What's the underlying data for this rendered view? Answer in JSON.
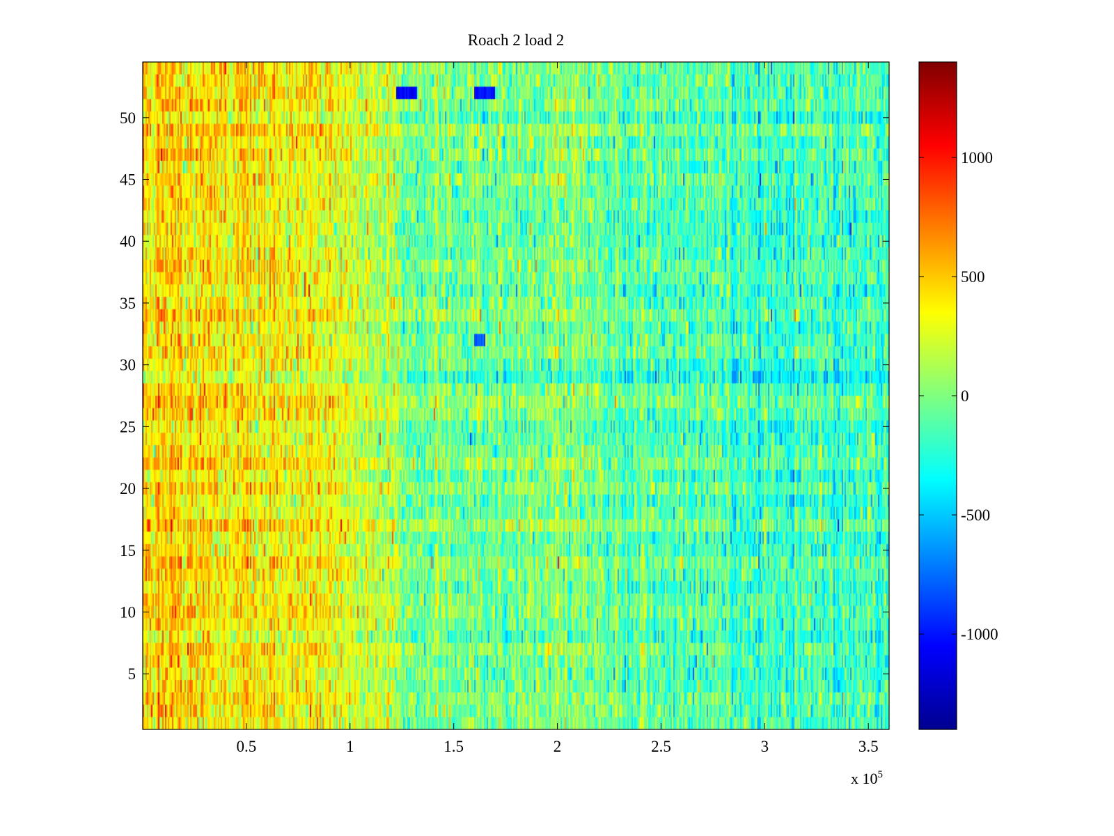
{
  "chart_data": {
    "type": "heatmap",
    "title": "Roach 2 load 2",
    "xlabel": "",
    "ylabel": "",
    "x_range": [
      0,
      360000
    ],
    "y_range": [
      0.5,
      54.5
    ],
    "x_ticks": [
      0.5,
      1,
      1.5,
      2,
      2.5,
      3,
      3.5
    ],
    "x_tick_labels": [
      "0.5",
      "1",
      "1.5",
      "2",
      "2.5",
      "3",
      "3.5"
    ],
    "x_multiplier": {
      "base": "x 10",
      "exponent": "5"
    },
    "y_ticks": [
      5,
      10,
      15,
      20,
      25,
      30,
      35,
      40,
      45,
      50
    ],
    "y_tick_labels": [
      "5",
      "10",
      "15",
      "20",
      "25",
      "30",
      "35",
      "40",
      "45",
      "50"
    ],
    "rows": 54,
    "colorbar": {
      "colormap": "jet",
      "range": [
        -1400,
        1400
      ],
      "ticks": [
        -1000,
        -500,
        0,
        500,
        1000
      ],
      "tick_labels": [
        "-1000",
        "-500",
        "0",
        "500",
        "1000"
      ]
    },
    "trend": {
      "description_points_x": [
        0,
        50000,
        100000,
        120000,
        130000,
        150000,
        165000,
        200000,
        250000,
        300000,
        360000
      ],
      "mean_value": [
        420,
        380,
        300,
        120,
        -80,
        0,
        -60,
        0,
        -120,
        -220,
        -200
      ]
    },
    "features": [
      {
        "x_start": 122000,
        "x_end": 132000,
        "row": 52,
        "value": -1050
      },
      {
        "x_start": 160000,
        "x_end": 170000,
        "row": 52,
        "value": -1000
      },
      {
        "x_start": 160000,
        "x_end": 165000,
        "row": 32,
        "value": -800
      }
    ],
    "grid": false,
    "legend": "colorbar-right"
  }
}
